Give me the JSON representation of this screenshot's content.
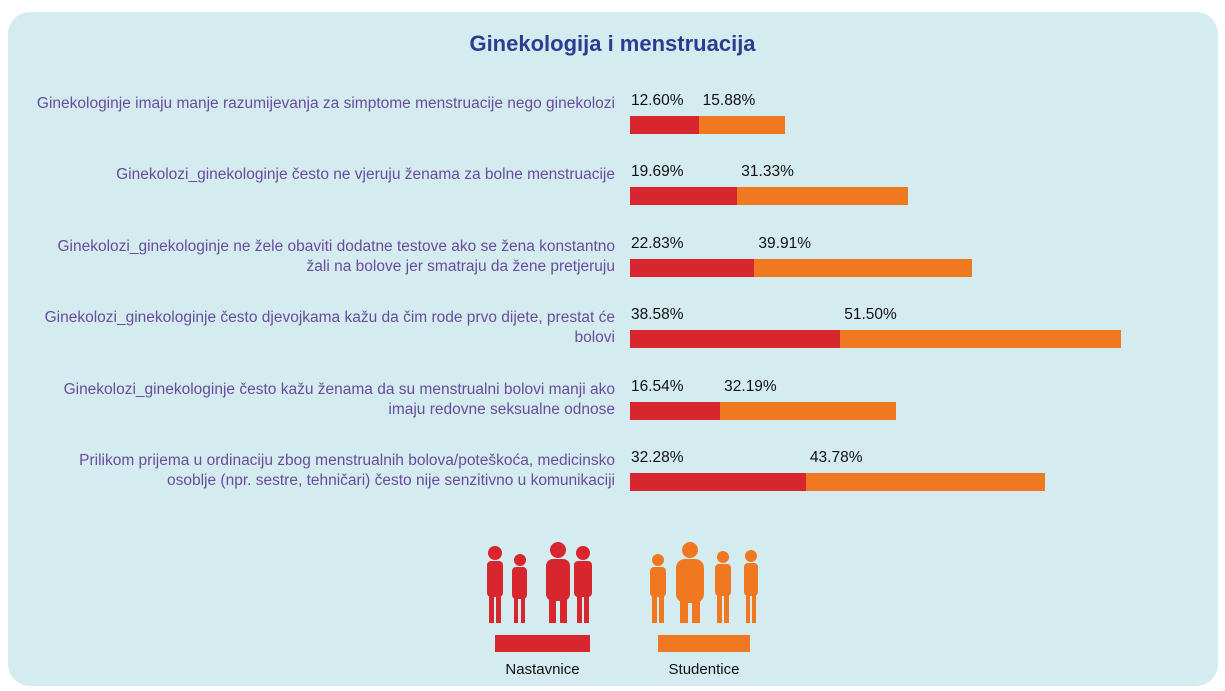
{
  "chart_data": {
    "type": "stacked-bar",
    "orientation": "horizontal",
    "title": "Ginekologija i menstruacija",
    "categories": [
      "Ginekologinje imaju manje razumijevanja za simptome menstruacije nego ginekolozi",
      "Ginekolozi_ginekologinje često ne vjeruju ženama za bolne menstruacije",
      "Ginekolozi_ginekologinje ne žele obaviti dodatne testove ako se žena konstantno žali na bolove jer smatraju da žene pretjeruju",
      "Ginekolozi_ginekologinje često djevojkama kažu da čim rode prvo dijete, prestat će bolovi",
      "Ginekolozi_ginekologinje često kažu ženama da su menstrualni bolovi manji ako imaju redovne seksualne odnose",
      "Prilikom prijema u ordinaciju zbog menstrualnih bolova/poteškoća, medicinsko osoblje (npr. sestre, tehničari) često nije senzitivno u komunikaciji"
    ],
    "series": [
      {
        "name": "Nastavnice",
        "color": "#d7262d",
        "values": [
          12.6,
          19.69,
          22.83,
          38.58,
          16.54,
          32.28
        ],
        "value_labels": [
          "12.60%",
          "19.69%",
          "22.83%",
          "38.58%",
          "16.54%",
          "32.28%"
        ]
      },
      {
        "name": "Studentice",
        "color": "#f07820",
        "values": [
          15.88,
          31.33,
          39.91,
          51.5,
          32.19,
          43.78
        ],
        "value_labels": [
          "15.88%",
          "31.33%",
          "39.91%",
          "51.50%",
          "32.19%",
          "43.78%"
        ]
      }
    ]
  }
}
